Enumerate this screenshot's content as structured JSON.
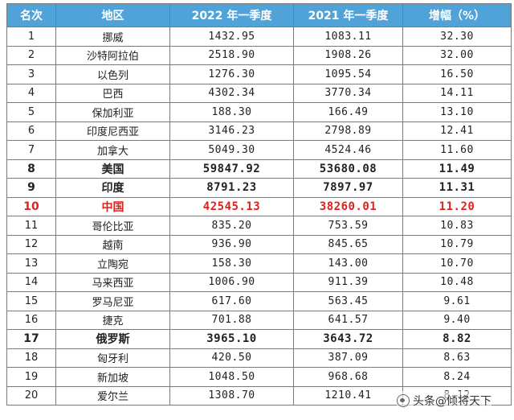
{
  "table": {
    "headers": [
      "名次",
      "地区",
      "2022 年一季度",
      "2021 年一季度",
      "增幅（%）"
    ],
    "rows": [
      [
        "1",
        "挪威",
        "1432.95",
        "1083.11",
        "32.30"
      ],
      [
        "2",
        "沙特阿拉伯",
        "2518.90",
        "1908.26",
        "32.00"
      ],
      [
        "3",
        "以色列",
        "1276.30",
        "1095.54",
        "16.50"
      ],
      [
        "4",
        "巴西",
        "4302.34",
        "3770.34",
        "14.11"
      ],
      [
        "5",
        "保加利亚",
        "188.30",
        "166.49",
        "13.10"
      ],
      [
        "6",
        "印度尼西亚",
        "3146.23",
        "2798.89",
        "12.41"
      ],
      [
        "7",
        "加拿大",
        "5049.30",
        "4524.46",
        "11.60"
      ],
      [
        "8",
        "美国",
        "59847.92",
        "53680.08",
        "11.49"
      ],
      [
        "9",
        "印度",
        "8791.23",
        "7897.97",
        "11.31"
      ],
      [
        "10",
        "中国",
        "42545.13",
        "38260.01",
        "11.20"
      ],
      [
        "11",
        "哥伦比亚",
        "835.20",
        "753.59",
        "10.83"
      ],
      [
        "12",
        "越南",
        "936.90",
        "845.65",
        "10.79"
      ],
      [
        "13",
        "立陶宛",
        "158.30",
        "143.00",
        "10.70"
      ],
      [
        "14",
        "马来西亚",
        "1006.90",
        "911.39",
        "10.48"
      ],
      [
        "15",
        "罗马尼亚",
        "617.60",
        "563.45",
        "9.61"
      ],
      [
        "16",
        "捷克",
        "701.88",
        "641.57",
        "9.40"
      ],
      [
        "17",
        "俄罗斯",
        "3965.10",
        "3643.72",
        "8.82"
      ],
      [
        "18",
        "匈牙利",
        "420.50",
        "387.09",
        "8.63"
      ],
      [
        "19",
        "新加坡",
        "1048.50",
        "968.68",
        "8.24"
      ],
      [
        "20",
        "爱尔兰",
        "1308.70",
        "1210.41",
        "8.12"
      ]
    ],
    "bold_ranks": [
      "8",
      "9",
      "17"
    ],
    "highlight_rank": "10"
  },
  "colors": {
    "header_bg": "#4fa3d8",
    "header_text": "#ffffff",
    "highlight": "#e0211b",
    "border": "#7a7a7a"
  },
  "watermark": {
    "text": "头条@倾将天下",
    "icon": "headline-logo-icon"
  }
}
